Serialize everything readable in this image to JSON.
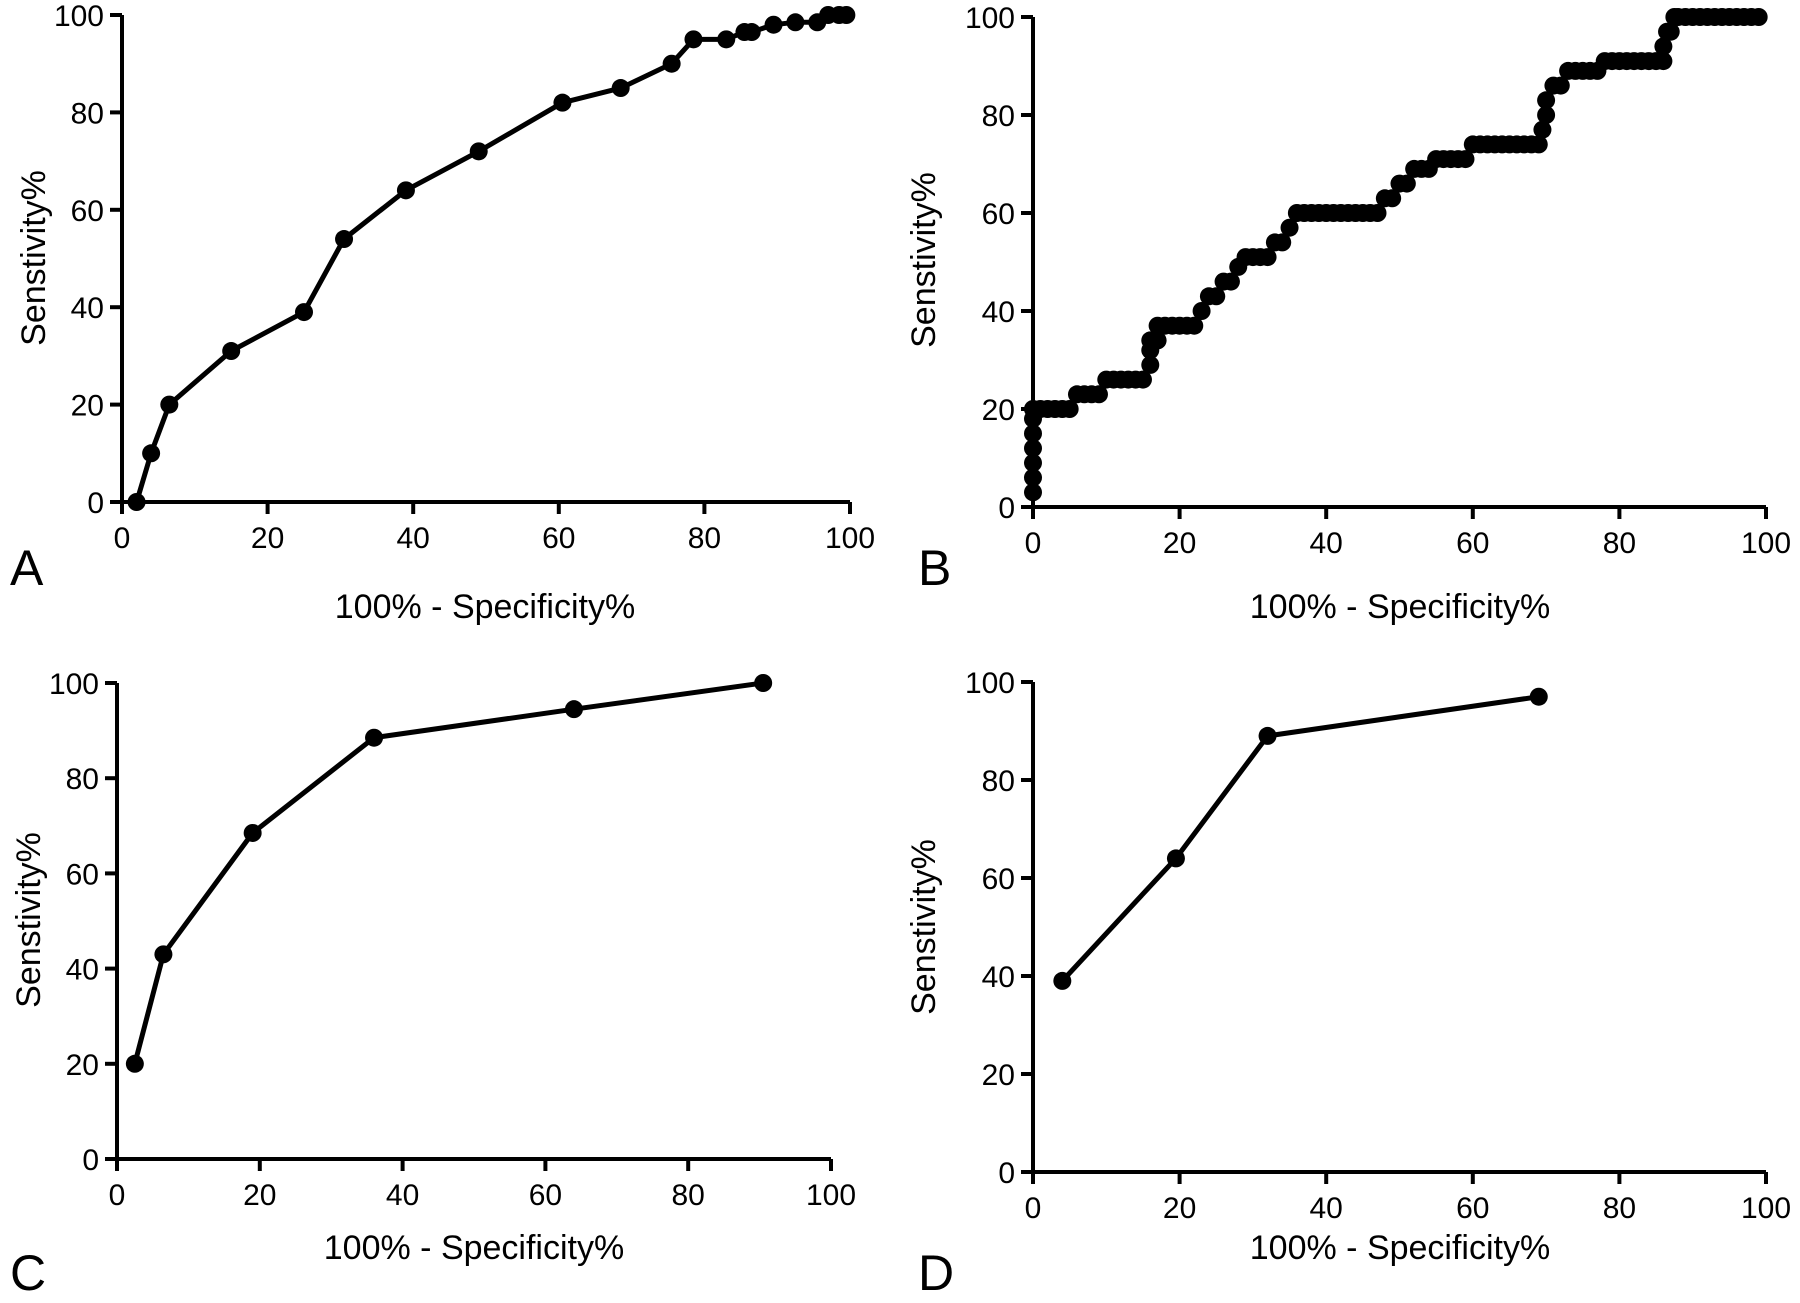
{
  "chart_data": [
    {
      "panel": "A",
      "type": "line",
      "xlabel": "100% - Specificity%",
      "ylabel": "Senstivity%",
      "xlim": [
        0,
        100
      ],
      "ylim": [
        0,
        100
      ],
      "xticks": [
        0,
        20,
        40,
        60,
        80,
        100
      ],
      "yticks": [
        0,
        20,
        40,
        60,
        80,
        100
      ],
      "grid": false,
      "x": [
        2,
        4,
        6.5,
        15,
        25,
        30.5,
        39,
        49,
        60.5,
        68.5,
        75.5,
        78.5,
        83,
        85.5,
        86.5,
        89.5,
        92.5,
        95.5,
        97,
        98.5,
        99.5
      ],
      "y": [
        0,
        10,
        20,
        31,
        39,
        54,
        64,
        72,
        82,
        85,
        90,
        95,
        95,
        96.5,
        96.5,
        98,
        98.5,
        98.5,
        100,
        100,
        100
      ]
    },
    {
      "panel": "B",
      "type": "line",
      "xlabel": "100% - Specificity%",
      "ylabel": "Senstivity%",
      "xlim": [
        0,
        100
      ],
      "ylim": [
        0,
        100
      ],
      "xticks": [
        0,
        20,
        40,
        60,
        80,
        100
      ],
      "yticks": [
        0,
        20,
        40,
        60,
        80,
        100
      ],
      "grid": false,
      "x": [
        0,
        0,
        0,
        0,
        0,
        0,
        0,
        1,
        2,
        3,
        4,
        5,
        6,
        7,
        8,
        9,
        10,
        11,
        12,
        13,
        14,
        15,
        16,
        16,
        16,
        17,
        17,
        18,
        19,
        20,
        21,
        22,
        23,
        24,
        25,
        26,
        27,
        28,
        29,
        30,
        31,
        32,
        33,
        34,
        35,
        36,
        37,
        38,
        39,
        40,
        41,
        42,
        43,
        44,
        45,
        46,
        47,
        48,
        49,
        50,
        51,
        52,
        53,
        54,
        55,
        56,
        57,
        58,
        59,
        60,
        61,
        62,
        63,
        64,
        65,
        66,
        67,
        68,
        69,
        69.5,
        70,
        70,
        71,
        72,
        73,
        74,
        75,
        76,
        77,
        78,
        79,
        80,
        81,
        82,
        83,
        84,
        85,
        86,
        86,
        86.5,
        87,
        87.5,
        88,
        89,
        90,
        91,
        92,
        93,
        94,
        95,
        96,
        97,
        98,
        99
      ],
      "y": [
        3,
        6,
        9,
        12,
        15,
        18,
        20,
        20,
        20,
        20,
        20,
        20,
        23,
        23,
        23,
        23,
        26,
        26,
        26,
        26,
        26,
        26,
        29,
        32,
        34,
        34,
        37,
        37,
        37,
        37,
        37,
        37,
        40,
        43,
        43,
        46,
        46,
        49,
        51,
        51,
        51,
        51,
        54,
        54,
        57,
        60,
        60,
        60,
        60,
        60,
        60,
        60,
        60,
        60,
        60,
        60,
        60,
        63,
        63,
        66,
        66,
        69,
        69,
        69,
        71,
        71,
        71,
        71,
        71,
        74,
        74,
        74,
        74,
        74,
        74,
        74,
        74,
        74,
        74,
        77,
        80,
        83,
        86,
        86,
        89,
        89,
        89,
        89,
        89,
        91,
        91,
        91,
        91,
        91,
        91,
        91,
        91,
        91,
        94,
        97,
        97,
        100,
        100,
        100,
        100,
        100,
        100,
        100,
        100,
        100,
        100,
        100,
        100,
        100
      ]
    },
    {
      "panel": "C",
      "type": "line",
      "xlabel": "100% - Specificity%",
      "ylabel": "Senstivity%",
      "xlim": [
        0,
        100
      ],
      "ylim": [
        0,
        100
      ],
      "xticks": [
        0,
        20,
        40,
        60,
        80,
        100
      ],
      "yticks": [
        0,
        20,
        40,
        60,
        80,
        100
      ],
      "grid": false,
      "x": [
        2.5,
        6.5,
        19,
        36,
        64,
        90.5
      ],
      "y": [
        20,
        43,
        68.5,
        88.5,
        94.5,
        100
      ]
    },
    {
      "panel": "D",
      "type": "line",
      "xlabel": "100% - Specificity%",
      "ylabel": "Senstivity%",
      "xlim": [
        0,
        100
      ],
      "ylim": [
        0,
        100
      ],
      "xticks": [
        0,
        20,
        40,
        60,
        80,
        100
      ],
      "yticks": [
        0,
        20,
        40,
        60,
        80,
        100
      ],
      "grid": false,
      "x": [
        4,
        19.5,
        32,
        69
      ],
      "y": [
        39,
        64,
        89,
        97
      ]
    }
  ]
}
